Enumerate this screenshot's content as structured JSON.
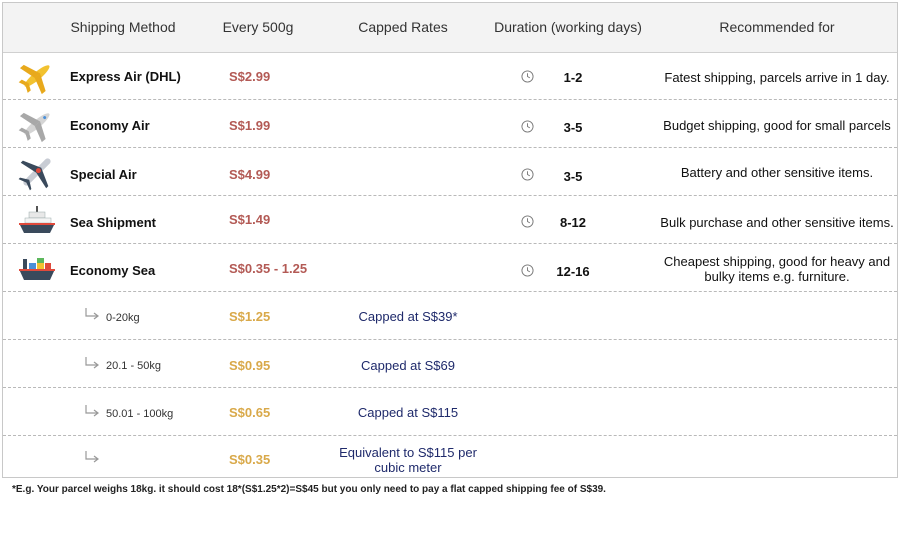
{
  "header": {
    "method": "Shipping Method",
    "every": "Every 500g",
    "capped": "Capped Rates",
    "duration": "Duration (working days)",
    "recommended": "Recommended for"
  },
  "methods": [
    {
      "name": "Express Air (DHL)",
      "price": "S$2.99",
      "duration": "1-2",
      "recommended": "Fatest shipping, parcels arrive in 1 day.",
      "icon": "yellow-plane-icon"
    },
    {
      "name": "Economy Air",
      "price": "S$1.99",
      "duration": "3-5",
      "recommended": "Budget shipping, good for small parcels",
      "icon": "grey-plane-icon"
    },
    {
      "name": "Special Air",
      "price": "S$4.99",
      "duration": "3-5",
      "recommended": "Battery and other sensitive items.",
      "icon": "plane-top-view-icon"
    },
    {
      "name": "Sea Shipment",
      "price": "S$1.49",
      "duration": "8-12",
      "recommended": "Bulk purchase and other sensitive items.",
      "icon": "ship-icon"
    },
    {
      "name": "Economy Sea",
      "price": "S$0.35 - 1.25",
      "duration": "12-16",
      "recommended": "Cheapest shipping, good for heavy and bulky items e.g. furniture.",
      "icon": "cargo-ship-icon"
    }
  ],
  "tiers": [
    {
      "label": "0-20kg",
      "price": "S$1.25",
      "capped": "Capped at S$39*"
    },
    {
      "label": "20.1 - 50kg",
      "price": "S$0.95",
      "capped": "Capped at S$69"
    },
    {
      "label": "50.01 - 100kg",
      "price": "S$0.65",
      "capped": "Capped at S$115"
    },
    {
      "label": "",
      "price": "S$0.35",
      "capped": "Equivalent to S$115 per cubic meter"
    }
  ],
  "footnote": "*E.g. Your parcel weighs 18kg. it should cost 18*(S$1.25*2)=S$45 but you only need to pay a flat capped shipping fee of S$39.",
  "colors": {
    "price_red": "#b35a55",
    "price_gold": "#d9a94a",
    "capped_navy": "#1f2a6b",
    "header_bg": "#f3f3f3"
  }
}
